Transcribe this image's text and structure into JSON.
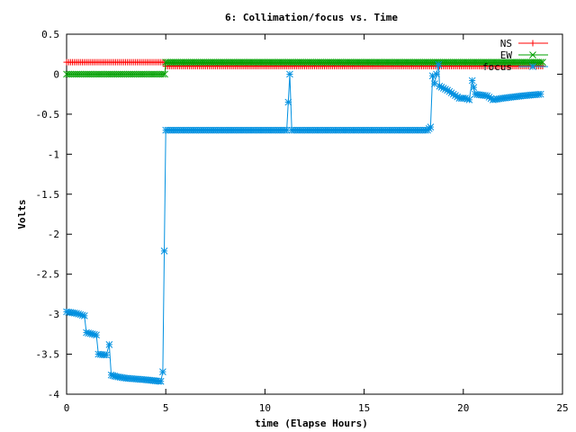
{
  "chart_data": {
    "type": "line",
    "title": "6: Collimation/focus vs. Time",
    "xlabel": "time (Elapse Hours)",
    "ylabel": "Volts",
    "xlim": [
      0,
      25
    ],
    "ylim": [
      -4,
      0.5
    ],
    "xticks": [
      0,
      5,
      10,
      15,
      20,
      25
    ],
    "xtick_labels": [
      "0",
      "5",
      "10",
      "15",
      "20",
      "25"
    ],
    "yticks": [
      0.5,
      0,
      -0.5,
      -1,
      -1.5,
      -2,
      -2.5,
      -3,
      -3.5,
      -4
    ],
    "ytick_labels": [
      "0.5",
      "0",
      "-0.5",
      "-1",
      "-1.5",
      "-2",
      "-2.5",
      "-3",
      "-3.5",
      "-4"
    ],
    "grid": false,
    "legend_position": "top-right",
    "series": [
      {
        "name": "NS",
        "color": "#ff0000",
        "marker": "plus",
        "points": [
          [
            0,
            0.15
          ],
          [
            4.95,
            0.15
          ],
          [
            5.0,
            0.1
          ],
          [
            24.0,
            0.1
          ]
        ]
      },
      {
        "name": "EW",
        "color": "#00a000",
        "marker": "x",
        "points": [
          [
            0,
            0.0
          ],
          [
            4.95,
            0.0
          ],
          [
            5.0,
            0.15
          ],
          [
            24.0,
            0.15
          ]
        ]
      },
      {
        "name": "focus",
        "color": "#0090e0",
        "marker": "star",
        "points": [
          [
            0,
            -2.97
          ],
          [
            0.5,
            -2.99
          ],
          [
            0.9,
            -3.02
          ],
          [
            1.0,
            -3.23
          ],
          [
            1.5,
            -3.26
          ],
          [
            1.6,
            -3.5
          ],
          [
            2.0,
            -3.51
          ],
          [
            2.15,
            -3.38
          ],
          [
            2.25,
            -3.76
          ],
          [
            2.5,
            -3.78
          ],
          [
            3.0,
            -3.8
          ],
          [
            4.0,
            -3.82
          ],
          [
            4.75,
            -3.84
          ],
          [
            4.85,
            -3.72
          ],
          [
            5.0,
            -0.7
          ],
          [
            11.1,
            -0.7
          ],
          [
            11.25,
            0.0
          ],
          [
            11.35,
            -0.7
          ],
          [
            18.2,
            -0.7
          ],
          [
            18.35,
            -0.66
          ],
          [
            18.45,
            -0.02
          ],
          [
            18.55,
            -0.12
          ],
          [
            18.75,
            0.12
          ],
          [
            18.8,
            -0.15
          ],
          [
            19.2,
            -0.2
          ],
          [
            19.8,
            -0.3
          ],
          [
            20.1,
            -0.3
          ],
          [
            20.3,
            -0.32
          ],
          [
            20.45,
            -0.08
          ],
          [
            20.6,
            -0.25
          ],
          [
            21.2,
            -0.27
          ],
          [
            21.5,
            -0.32
          ],
          [
            22.0,
            -0.3
          ],
          [
            23.0,
            -0.27
          ],
          [
            23.9,
            -0.25
          ]
        ]
      }
    ]
  }
}
